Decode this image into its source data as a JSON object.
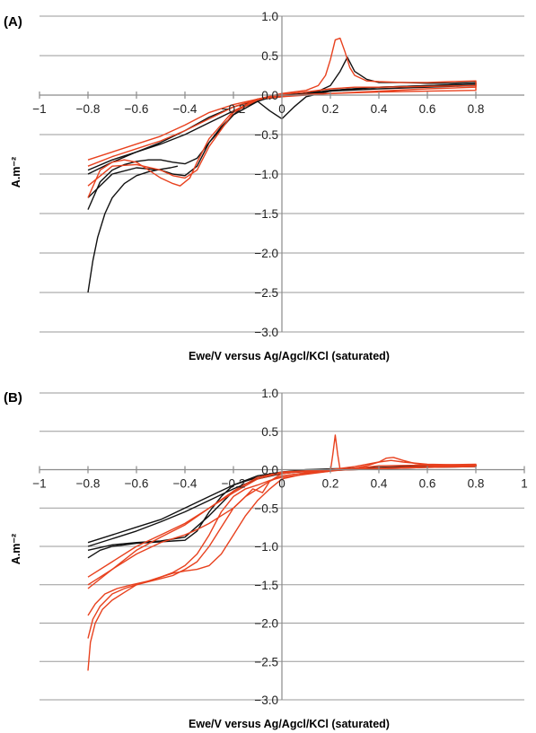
{
  "figure": {
    "panels": [
      {
        "label": "(A)",
        "xlabel": "Ewe/V versus Ag/Agcl/KCl (saturated)",
        "ylabel": "A.m⁻²",
        "xticks": [
          "−1",
          "−0.8",
          "−0.6",
          "−0.4",
          "−0.2",
          "0",
          "0.2",
          "0.4",
          "0.6",
          "0.8"
        ],
        "yticks": [
          "1.0",
          "0.5",
          "0.0",
          "−0.5",
          "−1.0",
          "−1.5",
          "−2.0",
          "−2.5",
          "−3.0"
        ]
      },
      {
        "label": "(B)",
        "xlabel": "Ewe/V versus Ag/Agcl/KCl (saturated)",
        "ylabel": "A.m⁻²",
        "xticks": [
          "−1",
          "−0.8",
          "−0.6",
          "−0.4",
          "−0.2",
          "0",
          "0.2",
          "0.4",
          "0.6",
          "0.8",
          "1"
        ],
        "yticks": [
          "1.0",
          "0.5",
          "0.0",
          "−0.5",
          "−1.0",
          "−1.5",
          "−2.0",
          "−2.5",
          "−3.0"
        ]
      }
    ]
  },
  "chart_data": [
    {
      "type": "line",
      "xlim": [
        -1,
        1
      ],
      "ylim": [
        -3,
        1
      ],
      "grid": true,
      "colors": {
        "black": "#111111",
        "red": "#e8411e"
      },
      "series": [
        {
          "color": "#111111",
          "x": [
            -0.8,
            -0.78,
            -0.76,
            -0.73,
            -0.7,
            -0.65,
            -0.6,
            -0.55,
            -0.5,
            -0.46,
            -0.43
          ],
          "y": [
            -2.5,
            -2.1,
            -1.8,
            -1.5,
            -1.3,
            -1.12,
            -1.02,
            -0.97,
            -0.94,
            -0.92,
            -0.9
          ]
        },
        {
          "color": "#111111",
          "x": [
            -0.8,
            -0.75,
            -0.7,
            -0.65,
            -0.6,
            -0.55,
            -0.5,
            -0.45,
            -0.4,
            -0.35,
            -0.3,
            -0.25,
            -0.2,
            -0.15,
            -0.1,
            -0.05,
            0,
            0.05,
            0.1,
            0.15,
            0.2,
            0.25,
            0.3,
            0.35,
            0.4,
            0.5,
            0.6,
            0.7,
            0.8,
            0.8,
            0.7,
            0.6,
            0.5,
            0.4,
            0.35,
            0.3,
            0.27,
            0.24,
            0.2,
            0.15,
            0.1,
            0.05,
            0,
            -0.05,
            -0.1,
            -0.2,
            -0.3,
            -0.4,
            -0.5,
            -0.6,
            -0.7,
            -0.8
          ],
          "y": [
            -1.45,
            -1.1,
            -0.95,
            -0.88,
            -0.84,
            -0.82,
            -0.82,
            -0.85,
            -0.87,
            -0.8,
            -0.6,
            -0.4,
            -0.25,
            -0.12,
            -0.05,
            -0.02,
            0,
            0.01,
            0.02,
            0.03,
            0.05,
            0.07,
            0.08,
            0.09,
            0.1,
            0.11,
            0.12,
            0.13,
            0.14,
            0.16,
            0.15,
            0.15,
            0.16,
            0.16,
            0.2,
            0.3,
            0.48,
            0.3,
            0.12,
            0.05,
            0.02,
            0.01,
            0,
            -0.03,
            -0.08,
            -0.2,
            -0.35,
            -0.5,
            -0.62,
            -0.72,
            -0.82,
            -0.95
          ]
        },
        {
          "color": "#111111",
          "x": [
            -0.8,
            -0.7,
            -0.6,
            -0.5,
            -0.45,
            -0.4,
            -0.35,
            -0.3,
            -0.2,
            -0.1,
            -0.05,
            0,
            0.05,
            0.1,
            0.2,
            0.4,
            0.6,
            0.8,
            0.8,
            0.6,
            0.4,
            0.2,
            0.1,
            0.05,
            0,
            -0.1,
            -0.2,
            -0.3,
            -0.4,
            -0.5,
            -0.6,
            -0.7,
            -0.8
          ],
          "y": [
            -1.3,
            -1.0,
            -0.92,
            -0.95,
            -1.0,
            -1.02,
            -0.9,
            -0.6,
            -0.25,
            -0.08,
            -0.2,
            -0.3,
            -0.15,
            -0.02,
            0.05,
            0.08,
            0.1,
            0.12,
            0.14,
            0.12,
            0.1,
            0.06,
            0.02,
            0.0,
            -0.02,
            -0.06,
            -0.15,
            -0.28,
            -0.45,
            -0.6,
            -0.72,
            -0.85,
            -1.0
          ]
        },
        {
          "color": "#e8411e",
          "x": [
            -0.8,
            -0.75,
            -0.7,
            -0.65,
            -0.6,
            -0.55,
            -0.5,
            -0.45,
            -0.42,
            -0.38,
            -0.35,
            -0.3,
            -0.2,
            -0.1,
            0,
            0.1,
            0.15,
            0.18,
            0.2,
            0.22,
            0.24,
            0.26,
            0.28,
            0.3,
            0.35,
            0.4,
            0.5,
            0.6,
            0.7,
            0.8,
            0.8,
            0.6,
            0.4,
            0.2,
            0.1,
            0,
            -0.1,
            -0.2,
            -0.3,
            -0.4,
            -0.5,
            -0.6,
            -0.7,
            -0.8
          ],
          "y": [
            -1.3,
            -0.95,
            -0.85,
            -0.82,
            -0.85,
            -0.95,
            -1.05,
            -1.12,
            -1.15,
            -1.05,
            -0.85,
            -0.55,
            -0.2,
            -0.05,
            0.02,
            0.06,
            0.12,
            0.25,
            0.45,
            0.7,
            0.72,
            0.55,
            0.35,
            0.25,
            0.18,
            0.17,
            0.16,
            0.16,
            0.17,
            0.18,
            0.1,
            0.08,
            0.05,
            0.02,
            0.01,
            -0.01,
            -0.05,
            -0.15,
            -0.3,
            -0.45,
            -0.58,
            -0.68,
            -0.78,
            -0.9
          ]
        },
        {
          "color": "#e8411e",
          "x": [
            -0.8,
            -0.7,
            -0.6,
            -0.5,
            -0.45,
            -0.4,
            -0.35,
            -0.3,
            -0.2,
            -0.1,
            0,
            0.1,
            0.2,
            0.3,
            0.4,
            0.6,
            0.8,
            0.8,
            0.6,
            0.4,
            0.2,
            0.1,
            0,
            -0.1,
            -0.2,
            -0.3,
            -0.4,
            -0.5,
            -0.6,
            -0.7,
            -0.8
          ],
          "y": [
            -1.15,
            -0.9,
            -0.88,
            -0.95,
            -1.02,
            -1.05,
            -0.95,
            -0.65,
            -0.22,
            -0.06,
            0.01,
            0.04,
            0.08,
            0.1,
            0.1,
            0.11,
            0.12,
            0.06,
            0.05,
            0.04,
            0.02,
            0.0,
            -0.02,
            -0.05,
            -0.12,
            -0.22,
            -0.38,
            -0.52,
            -0.62,
            -0.72,
            -0.82
          ]
        }
      ]
    },
    {
      "type": "line",
      "xlim": [
        -1,
        1
      ],
      "ylim": [
        -3,
        1
      ],
      "grid": true,
      "colors": {
        "black": "#111111",
        "red": "#e8411e"
      },
      "series": [
        {
          "color": "#111111",
          "x": [
            -0.8,
            -0.75,
            -0.7,
            -0.6,
            -0.5,
            -0.45,
            -0.4,
            -0.35,
            -0.3,
            -0.25,
            -0.2,
            -0.1,
            0,
            0.1,
            0.2,
            0.3,
            0.4,
            0.5,
            0.6,
            0.7,
            0.8,
            0.8,
            0.6,
            0.4,
            0.2,
            0.1,
            0,
            -0.1,
            -0.2,
            -0.3,
            -0.4,
            -0.5,
            -0.6,
            -0.7,
            -0.8
          ],
          "y": [
            -1.15,
            -1.05,
            -1.0,
            -0.96,
            -0.94,
            -0.93,
            -0.92,
            -0.8,
            -0.55,
            -0.35,
            -0.2,
            -0.08,
            -0.03,
            0.0,
            0.01,
            0.02,
            0.03,
            0.04,
            0.05,
            0.05,
            0.06,
            0.05,
            0.04,
            0.02,
            0.0,
            -0.02,
            -0.05,
            -0.12,
            -0.25,
            -0.4,
            -0.55,
            -0.68,
            -0.8,
            -0.9,
            -1.0
          ]
        },
        {
          "color": "#111111",
          "x": [
            -0.8,
            -0.7,
            -0.6,
            -0.5,
            -0.4,
            -0.3,
            -0.2,
            -0.1,
            0,
            0.2,
            0.4,
            0.6,
            0.8,
            0.8,
            0.6,
            0.4,
            0.2,
            0,
            -0.1,
            -0.2,
            -0.3,
            -0.4,
            -0.5,
            -0.6,
            -0.7,
            -0.8
          ],
          "y": [
            -1.05,
            -0.98,
            -0.95,
            -0.93,
            -0.88,
            -0.6,
            -0.28,
            -0.1,
            -0.04,
            0.0,
            0.02,
            0.04,
            0.05,
            0.04,
            0.03,
            0.01,
            -0.01,
            -0.04,
            -0.1,
            -0.2,
            -0.35,
            -0.5,
            -0.65,
            -0.75,
            -0.85,
            -0.95
          ]
        },
        {
          "color": "#e8411e",
          "x": [
            -0.8,
            -0.79,
            -0.77,
            -0.74,
            -0.7,
            -0.65,
            -0.6,
            -0.55,
            -0.5,
            -0.45,
            -0.4,
            -0.35,
            -0.3,
            -0.25,
            -0.2,
            -0.15,
            -0.1,
            -0.05,
            0,
            0.1,
            0.2,
            0.21,
            0.22,
            0.23,
            0.24,
            0.3,
            0.35,
            0.4,
            0.43,
            0.46,
            0.5,
            0.55,
            0.6,
            0.7,
            0.8,
            0.8,
            0.6,
            0.4,
            0.2,
            0.1,
            0,
            -0.05,
            -0.08,
            -0.12,
            -0.15,
            -0.2,
            -0.25,
            -0.3,
            -0.35,
            -0.4,
            -0.5,
            -0.6,
            -0.7,
            -0.8
          ],
          "y": [
            -2.62,
            -2.25,
            -2.0,
            -1.82,
            -1.7,
            -1.6,
            -1.5,
            -1.45,
            -1.4,
            -1.35,
            -1.32,
            -1.3,
            -1.25,
            -1.1,
            -0.85,
            -0.6,
            -0.4,
            -0.25,
            -0.12,
            -0.05,
            -0.02,
            0.2,
            0.45,
            0.2,
            0.0,
            0.02,
            0.05,
            0.1,
            0.15,
            0.16,
            0.12,
            0.08,
            0.06,
            0.05,
            0.06,
            0.05,
            0.04,
            0.02,
            0.0,
            -0.02,
            -0.05,
            -0.15,
            -0.3,
            -0.25,
            -0.35,
            -0.5,
            -0.6,
            -0.7,
            -0.78,
            -0.85,
            -0.95,
            -1.1,
            -1.3,
            -1.55
          ]
        },
        {
          "color": "#e8411e",
          "x": [
            -0.8,
            -0.78,
            -0.75,
            -0.7,
            -0.65,
            -0.6,
            -0.55,
            -0.5,
            -0.45,
            -0.4,
            -0.35,
            -0.3,
            -0.25,
            -0.2,
            -0.15,
            -0.1,
            -0.05,
            0,
            0.1,
            0.2,
            0.3,
            0.4,
            0.45,
            0.5,
            0.6,
            0.8,
            0.8,
            0.6,
            0.4,
            0.2,
            0,
            -0.1,
            -0.2,
            -0.3,
            -0.4,
            -0.5,
            -0.6,
            -0.7,
            -0.8
          ],
          "y": [
            -2.2,
            -1.95,
            -1.78,
            -1.62,
            -1.55,
            -1.5,
            -1.46,
            -1.42,
            -1.38,
            -1.3,
            -1.2,
            -1.0,
            -0.75,
            -0.5,
            -0.35,
            -0.25,
            -0.15,
            -0.08,
            -0.04,
            0.0,
            0.04,
            0.1,
            0.12,
            0.1,
            0.07,
            0.06,
            0.04,
            0.03,
            0.01,
            -0.01,
            -0.04,
            -0.12,
            -0.3,
            -0.5,
            -0.72,
            -0.88,
            -1.05,
            -1.3,
            -1.5
          ]
        },
        {
          "color": "#e8411e",
          "x": [
            -0.8,
            -0.77,
            -0.73,
            -0.68,
            -0.62,
            -0.55,
            -0.5,
            -0.45,
            -0.4,
            -0.35,
            -0.3,
            -0.25,
            -0.2,
            -0.15,
            -0.1,
            -0.05,
            0,
            0.2,
            0.4,
            0.6,
            0.8,
            0.8,
            0.6,
            0.4,
            0.2,
            0,
            -0.1,
            -0.2,
            -0.3,
            -0.4,
            -0.5,
            -0.6,
            -0.7,
            -0.8
          ],
          "y": [
            -1.9,
            -1.75,
            -1.62,
            -1.55,
            -1.5,
            -1.45,
            -1.4,
            -1.34,
            -1.25,
            -1.1,
            -0.85,
            -0.55,
            -0.35,
            -0.25,
            -0.2,
            -0.14,
            -0.1,
            -0.02,
            0.05,
            0.06,
            0.07,
            0.05,
            0.04,
            0.02,
            0.0,
            -0.03,
            -0.1,
            -0.28,
            -0.5,
            -0.7,
            -0.85,
            -1.0,
            -1.2,
            -1.4
          ]
        }
      ]
    }
  ]
}
